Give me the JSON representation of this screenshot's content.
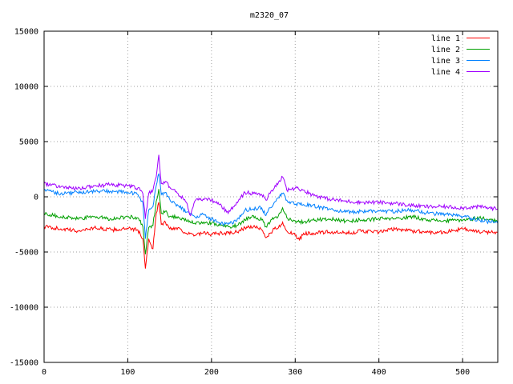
{
  "chart_data": {
    "type": "line",
    "title": "m2320_07",
    "xlabel": "",
    "ylabel": "",
    "xlim": [
      0,
      542
    ],
    "ylim": [
      -15000,
      15000
    ],
    "xticks": [
      0,
      100,
      200,
      300,
      400,
      500
    ],
    "yticks": [
      -15000,
      -10000,
      -5000,
      0,
      5000,
      10000,
      15000
    ],
    "grid": true,
    "legend_position": "top-right",
    "series": [
      {
        "name": "line 1",
        "color": "#ff0000",
        "x": [
          0,
          20,
          40,
          60,
          80,
          100,
          112,
          118,
          121,
          125,
          130,
          134,
          137,
          140,
          145,
          150,
          160,
          170,
          180,
          190,
          200,
          210,
          220,
          230,
          240,
          250,
          260,
          265,
          270,
          275,
          280,
          285,
          290,
          300,
          305,
          310,
          320,
          340,
          360,
          380,
          400,
          420,
          440,
          460,
          480,
          500,
          520,
          542
        ],
        "y": [
          -2700,
          -2900,
          -3100,
          -2800,
          -3000,
          -2900,
          -3000,
          -3800,
          -6500,
          -3800,
          -4700,
          -1500,
          -500,
          -2500,
          -2300,
          -2900,
          -2800,
          -3300,
          -3500,
          -3300,
          -3400,
          -3300,
          -3300,
          -3200,
          -2800,
          -2700,
          -3000,
          -3700,
          -3300,
          -2900,
          -2800,
          -2300,
          -3100,
          -3500,
          -3900,
          -3300,
          -3300,
          -3200,
          -3300,
          -3100,
          -3200,
          -2900,
          -3100,
          -3200,
          -3200,
          -2900,
          -3200,
          -3200
        ]
      },
      {
        "name": "line 2",
        "color": "#00a000",
        "x": [
          0,
          20,
          40,
          60,
          80,
          100,
          112,
          118,
          121,
          125,
          130,
          134,
          137,
          140,
          145,
          150,
          160,
          170,
          180,
          190,
          200,
          210,
          220,
          230,
          240,
          250,
          260,
          265,
          270,
          275,
          280,
          285,
          290,
          300,
          310,
          320,
          340,
          360,
          380,
          400,
          420,
          440,
          460,
          480,
          500,
          520,
          542
        ],
        "y": [
          -1500,
          -1800,
          -2000,
          -1800,
          -2000,
          -1800,
          -1900,
          -2700,
          -5200,
          -2800,
          -2600,
          -400,
          700,
          -1500,
          -1300,
          -1800,
          -1800,
          -2200,
          -2400,
          -2300,
          -2400,
          -2600,
          -2700,
          -2600,
          -2100,
          -1700,
          -2100,
          -2700,
          -2300,
          -1900,
          -1700,
          -1000,
          -1900,
          -2200,
          -2300,
          -2100,
          -2000,
          -2200,
          -2100,
          -2000,
          -2000,
          -1800,
          -2100,
          -2200,
          -2100,
          -1900,
          -2200
        ]
      },
      {
        "name": "line 3",
        "color": "#0080ff",
        "x": [
          0,
          20,
          40,
          60,
          80,
          100,
          112,
          118,
          121,
          125,
          130,
          134,
          137,
          140,
          145,
          150,
          160,
          170,
          180,
          190,
          200,
          210,
          220,
          230,
          240,
          250,
          260,
          265,
          270,
          275,
          280,
          285,
          290,
          300,
          310,
          320,
          340,
          360,
          380,
          400,
          420,
          440,
          460,
          480,
          500,
          520,
          542
        ],
        "y": [
          600,
          300,
          400,
          500,
          500,
          400,
          200,
          -500,
          -3800,
          -1200,
          -900,
          1000,
          2100,
          200,
          400,
          -200,
          -800,
          -1400,
          -1800,
          -1600,
          -2000,
          -2400,
          -2500,
          -2200,
          -1200,
          -1100,
          -1000,
          -1700,
          -1000,
          -500,
          -100,
          300,
          -300,
          -700,
          -700,
          -800,
          -1100,
          -1400,
          -1300,
          -1300,
          -1300,
          -1200,
          -1500,
          -1600,
          -1800,
          -2100,
          -2400
        ]
      },
      {
        "name": "line 4",
        "color": "#a000ff",
        "x": [
          0,
          20,
          40,
          60,
          80,
          100,
          112,
          118,
          121,
          125,
          130,
          134,
          137,
          140,
          145,
          150,
          160,
          170,
          175,
          180,
          190,
          200,
          210,
          220,
          230,
          240,
          250,
          260,
          265,
          270,
          275,
          280,
          285,
          290,
          300,
          310,
          320,
          340,
          360,
          380,
          400,
          420,
          440,
          460,
          480,
          500,
          520,
          542
        ],
        "y": [
          1200,
          900,
          700,
          1000,
          1100,
          1000,
          800,
          300,
          -2000,
          300,
          600,
          1800,
          3800,
          1200,
          1400,
          900,
          300,
          -500,
          -1700,
          -400,
          -200,
          -300,
          -700,
          -1500,
          -500,
          400,
          300,
          200,
          -300,
          300,
          800,
          1300,
          1800,
          600,
          800,
          600,
          200,
          -200,
          -400,
          -500,
          -500,
          -600,
          -800,
          -900,
          -900,
          -1000,
          -900,
          -1100
        ]
      }
    ]
  }
}
